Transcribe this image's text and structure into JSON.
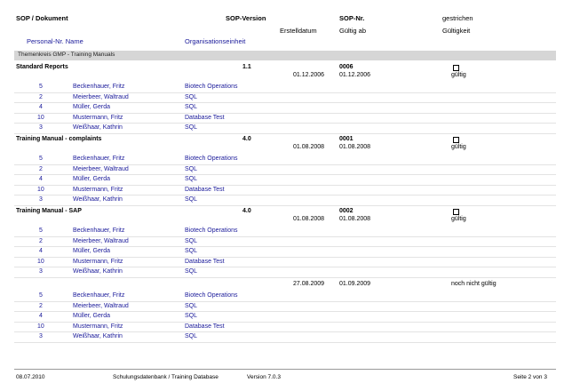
{
  "header": {
    "sop_document": "SOP / Dokument",
    "sop_version": "SOP-Version",
    "sop_nr": "SOP-Nr.",
    "deleted": "gestrichen",
    "personal_nr_name": "Personal-Nr. Name",
    "org_unit": "Organisationseinheit",
    "created_date": "Erstelldatum",
    "valid_from": "Gültig ab",
    "validity": "Gültigkeit"
  },
  "group": {
    "label": "Themenkreis  GMP - Training Manuals"
  },
  "sections": [
    {
      "title": "Standard Reports",
      "version": "1.1",
      "number": "0006",
      "created": "01.12.2006",
      "valid_from": "01.12.2006",
      "validity": "gültig",
      "people": [
        {
          "nr": "5",
          "name": "Beckenhauer, Fritz",
          "org": "Biotech Operations"
        },
        {
          "nr": "2",
          "name": "Meierbeer, Waltraud",
          "org": "SQL"
        },
        {
          "nr": "4",
          "name": "Müller, Gerda",
          "org": "SQL"
        },
        {
          "nr": "10",
          "name": "Mustermann, Fritz",
          "org": "Database Test"
        },
        {
          "nr": "3",
          "name": "Weißhaar, Kathrin",
          "org": "SQL"
        }
      ]
    },
    {
      "title": "Training Manual - complaints",
      "version": "4.0",
      "number": "0001",
      "created": "01.08.2008",
      "valid_from": "01.08.2008",
      "validity": "gültig",
      "people": [
        {
          "nr": "5",
          "name": "Beckenhauer, Fritz",
          "org": "Biotech Operations"
        },
        {
          "nr": "2",
          "name": "Meierbeer, Waltraud",
          "org": "SQL"
        },
        {
          "nr": "4",
          "name": "Müller, Gerda",
          "org": "SQL"
        },
        {
          "nr": "10",
          "name": "Mustermann, Fritz",
          "org": "Database Test"
        },
        {
          "nr": "3",
          "name": "Weißhaar, Kathrin",
          "org": "SQL"
        }
      ]
    },
    {
      "title": "Training Manual - SAP",
      "version": "4.0",
      "number": "0002",
      "created": "01.08.2008",
      "valid_from": "01.08.2008",
      "validity": "gültig",
      "people": [
        {
          "nr": "5",
          "name": "Beckenhauer, Fritz",
          "org": "Biotech Operations"
        },
        {
          "nr": "2",
          "name": "Meierbeer, Waltraud",
          "org": "SQL"
        },
        {
          "nr": "4",
          "name": "Müller, Gerda",
          "org": "SQL"
        },
        {
          "nr": "10",
          "name": "Mustermann, Fritz",
          "org": "Database Test"
        },
        {
          "nr": "3",
          "name": "Weißhaar, Kathrin",
          "org": "SQL"
        }
      ],
      "extra": {
        "created": "27.08.2009",
        "valid_from": "01.09.2009",
        "validity": "noch nicht gültig",
        "people": [
          {
            "nr": "5",
            "name": "Beckenhauer, Fritz",
            "org": "Biotech Operations"
          },
          {
            "nr": "2",
            "name": "Meierbeer, Waltraud",
            "org": "SQL"
          },
          {
            "nr": "4",
            "name": "Müller, Gerda",
            "org": "SQL"
          },
          {
            "nr": "10",
            "name": "Mustermann, Fritz",
            "org": "Database Test"
          },
          {
            "nr": "3",
            "name": "Weißhaar, Kathrin",
            "org": "SQL"
          }
        ]
      }
    }
  ],
  "footer": {
    "date": "08.07.2010",
    "database": "Schulungsdatenbank / Training Database",
    "version": "Version 7.0.3",
    "page": "Seite 2  von 3"
  }
}
